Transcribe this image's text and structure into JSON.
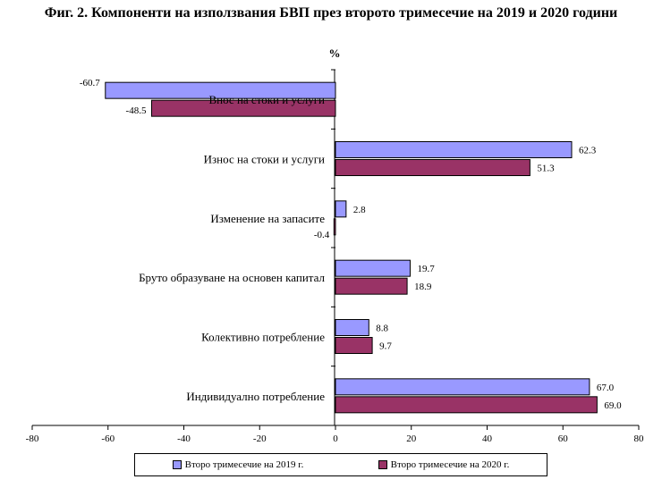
{
  "title": "Фиг. 2. Компоненти на използвания БВП през второто тримесечие на 2019 и 2020 години",
  "colors": {
    "s2019": "#9999ff",
    "s2020": "#993366",
    "axis": "#000000"
  },
  "chart_data": {
    "type": "bar",
    "orientation": "horizontal",
    "title": "Фиг. 2. Компоненти на използвания БВП през второто тримесечие на 2019 и 2020 години",
    "unit_label": "%",
    "xlim": [
      -80,
      80
    ],
    "xticks": [
      "-80",
      "-60",
      "-40",
      "-20",
      "0",
      "20",
      "40",
      "60",
      "80"
    ],
    "xtick_values": [
      -80,
      -60,
      -40,
      -20,
      0,
      20,
      40,
      60,
      80
    ],
    "categories": [
      "Внос на стоки и услуги",
      "Износ на стоки и услуги",
      "Изменение на запасите",
      "Бруто образуване на основен капитал",
      "Колективно потребление",
      "Индивидуално потребление"
    ],
    "series": [
      {
        "name": "Второ тримесечие на 2019 г.",
        "values": [
          -60.7,
          62.3,
          2.8,
          19.7,
          8.8,
          67.0
        ],
        "labels": [
          "-60.7",
          "62.3",
          "2.8",
          "19.7",
          "8.8",
          "67.0"
        ]
      },
      {
        "name": "Второ тримесечие на 2020 г.",
        "values": [
          -48.5,
          51.3,
          -0.4,
          18.9,
          9.7,
          69.0
        ],
        "labels": [
          "-48.5",
          "51.3",
          "-0.4",
          "18.9",
          "9.7",
          "69.0"
        ]
      }
    ],
    "legend_position": "bottom"
  }
}
